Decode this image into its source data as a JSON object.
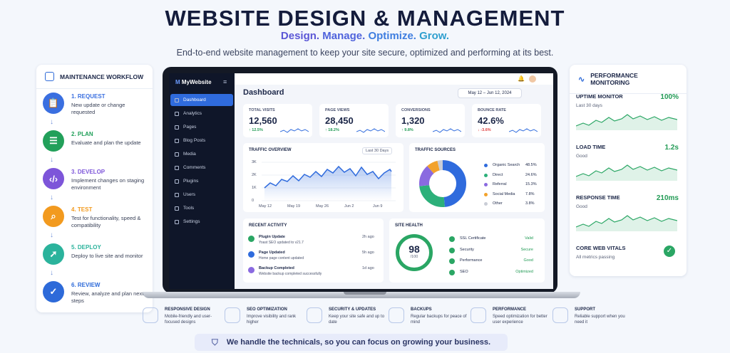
{
  "header": {
    "title": "WEBSITE DESIGN & MANAGEMENT",
    "tagline": [
      "Design.",
      "Manage.",
      "Optimize.",
      "Grow."
    ],
    "subtitle": "End-to-end website management to keep your site secure, optimized and performing at its best."
  },
  "workflow": {
    "title": "MAINTENANCE WORKFLOW",
    "steps": [
      {
        "title": "1. REQUEST",
        "desc": "New update or change requested",
        "color": "#3a6fe0"
      },
      {
        "title": "2. PLAN",
        "desc": "Evaluate and plan the update",
        "color": "#22a05a"
      },
      {
        "title": "3. DEVELOP",
        "desc": "Implement changes on staging environment",
        "color": "#7d55d9"
      },
      {
        "title": "4. TEST",
        "desc": "Test for functionality, speed & compatibility",
        "color": "#f29a1f"
      },
      {
        "title": "5. DEPLOY",
        "desc": "Deploy to live site and monitor",
        "color": "#2bb39c"
      },
      {
        "title": "6. REVIEW",
        "desc": "Review, analyze and plan next steps",
        "color": "#2d6ad9"
      }
    ]
  },
  "app": {
    "brand": "MyWebsite",
    "nav": [
      "Dashboard",
      "Analytics",
      "Pages",
      "Blog Posts",
      "Media",
      "Comments",
      "Plugins",
      "Users",
      "Tools",
      "Settings"
    ],
    "page_title": "Dashboard",
    "date_range": "May 12 – Jun 12, 2024",
    "kpis": [
      {
        "label": "TOTAL VISITS",
        "value": "12,560",
        "change": "↑ 12.5%",
        "color": "#229b55"
      },
      {
        "label": "PAGE VIEWS",
        "value": "28,450",
        "change": "↑ 18.2%",
        "color": "#229b55"
      },
      {
        "label": "CONVERSIONS",
        "value": "1,320",
        "change": "↑ 9.8%",
        "color": "#229b55"
      },
      {
        "label": "BOUNCE RATE",
        "value": "42.6%",
        "change": "↓ -3.6%",
        "color": "#e03c3c"
      }
    ],
    "traffic": {
      "title": "TRAFFIC OVERVIEW",
      "range": "Last 30 Days",
      "yticks": [
        "3K",
        "2K",
        "1K",
        "0"
      ],
      "xticks": [
        "May 12",
        "May 19",
        "May 26",
        "Jun 2",
        "Jun 9"
      ]
    },
    "sources": {
      "title": "TRAFFIC SOURCES",
      "items": [
        {
          "name": "Organic Search",
          "pct": "48.5%",
          "color": "#2f6bdd"
        },
        {
          "name": "Direct",
          "pct": "24.6%",
          "color": "#2cb07a"
        },
        {
          "name": "Referral",
          "pct": "15.3%",
          "color": "#8a6ae0"
        },
        {
          "name": "Social Media",
          "pct": "7.8%",
          "color": "#f2a22c"
        },
        {
          "name": "Other",
          "pct": "3.8%",
          "color": "#c9cdd6"
        }
      ]
    },
    "activity": {
      "title": "RECENT ACTIVITY",
      "items": [
        {
          "title": "Plugin Update",
          "desc": "Yoast SEO updated to v21.7",
          "time": "2h ago"
        },
        {
          "title": "Page Updated",
          "desc": "Home page content updated",
          "time": "5h ago"
        },
        {
          "title": "Backup Completed",
          "desc": "Website backup completed successfully",
          "time": "1d ago"
        }
      ]
    },
    "health": {
      "title": "SITE HEALTH",
      "score": "98",
      "out_of": "/100",
      "items": [
        {
          "name": "SSL Certificate",
          "status": "Valid"
        },
        {
          "name": "Security",
          "status": "Secure"
        },
        {
          "name": "Performance",
          "status": "Good"
        },
        {
          "name": "SEO",
          "status": "Optimized"
        }
      ]
    }
  },
  "monitor": {
    "title": "PERFORMANCE MONITORING",
    "items": [
      {
        "title": "UPTIME MONITOR",
        "sub": "Last 30 days",
        "value": "100%"
      },
      {
        "title": "LOAD TIME",
        "sub": "Good",
        "value": "1.2s"
      },
      {
        "title": "RESPONSE TIME",
        "sub": "Good",
        "value": "210ms"
      },
      {
        "title": "CORE WEB VITALS",
        "sub": "All metrics passing",
        "value": ""
      }
    ]
  },
  "features": [
    {
      "title": "RESPONSIVE DESIGN",
      "desc": "Mobile-friendly and user-focused designs"
    },
    {
      "title": "SEO OPTIMIZATION",
      "desc": "Improve visibility and rank higher"
    },
    {
      "title": "SECURITY & UPDATES",
      "desc": "Keep your site safe and up to date"
    },
    {
      "title": "BACKUPS",
      "desc": "Regular backups for peace of mind"
    },
    {
      "title": "PERFORMANCE",
      "desc": "Speed optimization for better user experience"
    },
    {
      "title": "SUPPORT",
      "desc": "Reliable support when you need it"
    }
  ],
  "banner": "We handle the technicals, so you can focus on growing your business."
}
